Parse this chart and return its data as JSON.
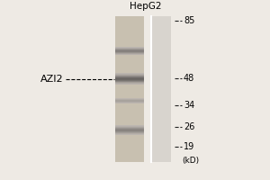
{
  "background_color": "#eeeae4",
  "title": "HepG2",
  "title_fontsize": 7.5,
  "label_name": "AZI2",
  "label_fontsize": 8,
  "kd_label": "(kD)",
  "kd_fontsize": 6.5,
  "mw_markers": [
    85,
    48,
    34,
    26,
    19
  ],
  "mw_marker_fontsize": 7,
  "lane1_color": "#c8c0b0",
  "lane2_color": "#d8d4ce",
  "marker_tick_color": "#222222",
  "band_dark_color": "#888078",
  "band_medium_color": "#a09890",
  "band_faint_color": "#b8b0a8"
}
